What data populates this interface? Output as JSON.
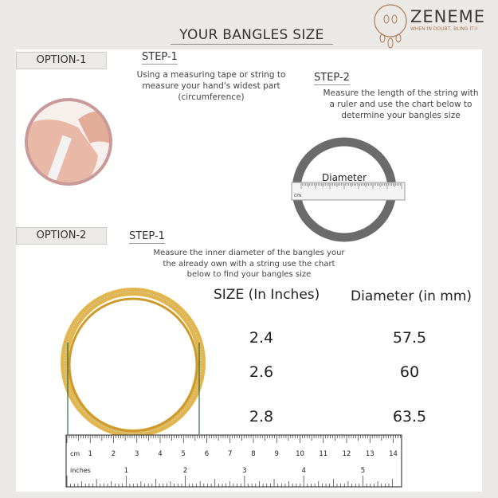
{
  "header": {
    "title": "YOUR BANGLES SIZE"
  },
  "logo": {
    "name": "ZENEME",
    "tagline": "WHEN IN DOUBT, BLING IT!!"
  },
  "option1": {
    "label": "OPTION-1",
    "step1": {
      "label": "STEP-1",
      "lines": [
        "Using a measuring tape or string to",
        "measure your hand's widest part",
        "(circumference)"
      ]
    },
    "step2": {
      "label": "STEP-2",
      "lines": [
        "Measure the length of the string with",
        "a ruler  and use the chart below to",
        "determine your bangles size"
      ]
    },
    "diagram_label": "Diameter",
    "ruler_unit": "cm"
  },
  "option2": {
    "label": "OPTION-2",
    "step1": {
      "label": "STEP-1",
      "lines": [
        "Measure the inner diameter of the bangles  your",
        "the already  own with a string use the chart",
        "below to find your bangles size"
      ]
    }
  },
  "size_table": {
    "headers": [
      "SIZE (In Inches)",
      "Diameter (in mm)"
    ],
    "rows": [
      [
        "2.4",
        "57.5"
      ],
      [
        "2.6",
        "60"
      ],
      [
        "2.8",
        "63.5"
      ]
    ]
  },
  "ruler": {
    "cm_label": "cm",
    "cm_ticks": [
      "1",
      "2",
      "3",
      "4",
      "5",
      "6",
      "7",
      "8",
      "9",
      "10",
      "11",
      "12",
      "13",
      "14"
    ],
    "inch_label": "inches",
    "inch_ticks": [
      "1",
      "2",
      "3",
      "4",
      "5"
    ]
  },
  "colors": {
    "background": "#ebe9e6",
    "gold": "#e2b64a",
    "accent": "#c99a9a",
    "ring": "#6b6b6b",
    "guide": "#2e6b3d"
  }
}
